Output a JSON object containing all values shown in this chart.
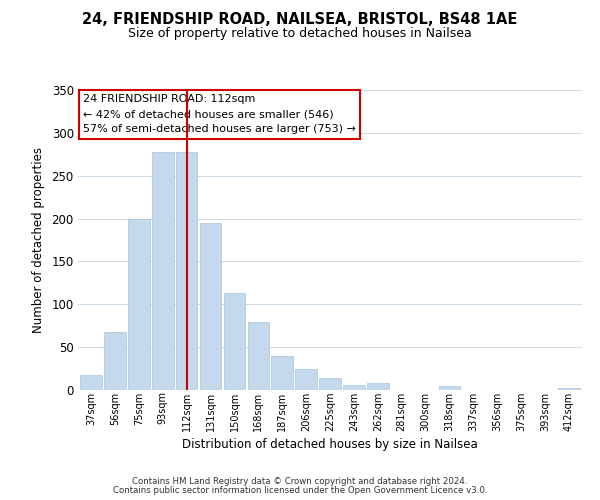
{
  "title1": "24, FRIENDSHIP ROAD, NAILSEA, BRISTOL, BS48 1AE",
  "title2": "Size of property relative to detached houses in Nailsea",
  "xlabel": "Distribution of detached houses by size in Nailsea",
  "ylabel": "Number of detached properties",
  "categories": [
    "37sqm",
    "56sqm",
    "75sqm",
    "93sqm",
    "112sqm",
    "131sqm",
    "150sqm",
    "168sqm",
    "187sqm",
    "206sqm",
    "225sqm",
    "243sqm",
    "262sqm",
    "281sqm",
    "300sqm",
    "318sqm",
    "337sqm",
    "356sqm",
    "375sqm",
    "393sqm",
    "412sqm"
  ],
  "values": [
    18,
    68,
    200,
    278,
    278,
    195,
    113,
    79,
    40,
    24,
    14,
    6,
    8,
    0,
    0,
    5,
    0,
    0,
    0,
    0,
    2
  ],
  "bar_color": "#c5d9ed",
  "bar_edgecolor": "#a8c4de",
  "redline_index": 4,
  "annotation_title": "24 FRIENDSHIP ROAD: 112sqm",
  "annotation_line1": "← 42% of detached houses are smaller (546)",
  "annotation_line2": "57% of semi-detached houses are larger (753) →",
  "annotation_box_edgecolor": "#cc0000",
  "redline_color": "#cc0000",
  "ylim": [
    0,
    350
  ],
  "yticks": [
    0,
    50,
    100,
    150,
    200,
    250,
    300,
    350
  ],
  "footnote1": "Contains HM Land Registry data © Crown copyright and database right 2024.",
  "footnote2": "Contains public sector information licensed under the Open Government Licence v3.0.",
  "background_color": "#ffffff",
  "grid_color": "#ccd9e8"
}
